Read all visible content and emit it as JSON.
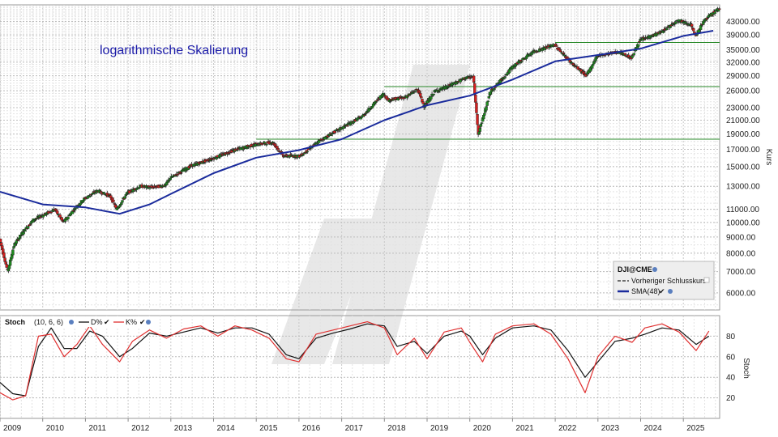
{
  "colors": {
    "up": "#1e8c1e",
    "down": "#d42020",
    "sma": "#1a2b9c",
    "stoch_d": "#111111",
    "stoch_k": "#e03030",
    "support": "#2a8a2a",
    "annotation": "#1a1aa8"
  },
  "chart_data": [
    {
      "type": "candlestick",
      "annotation": "logarithmische Skalierung",
      "ylabel": "Kurs",
      "yscale": "log",
      "ylim": [
        5300,
        48500
      ],
      "xlim": [
        2009.0,
        2025.85
      ],
      "x_ticks": [
        "2009",
        "2010",
        "2011",
        "2012",
        "2013",
        "2014",
        "2015",
        "2016",
        "2017",
        "2018",
        "2019",
        "2020",
        "2021",
        "2022",
        "2023",
        "2024",
        "2025"
      ],
      "y_ticks": [
        "6000.00",
        "7000.00",
        "8000.00",
        "9000.00",
        "10000.00",
        "11000.00",
        "13000.00",
        "15000.00",
        "17000.00",
        "19000.00",
        "21000.00",
        "23000.00",
        "26000.00",
        "29000.00",
        "32000.00",
        "35000.00",
        "39000.00",
        "43000.00"
      ],
      "legend": {
        "position": "bottom-right",
        "title": "DJI@CME",
        "prev_close_label": "Vorheriger Schlusskurs",
        "sma_label": "SMA(48)"
      },
      "support_lines": [
        {
          "y": 18300,
          "x_start": 2015.0,
          "x_end": 2025.85
        },
        {
          "y": 26800,
          "x_start": 2018.0,
          "x_end": 2025.85
        },
        {
          "y": 36900,
          "x_start": 2022.0,
          "x_end": 2025.85
        }
      ],
      "price_path": [
        [
          2009.0,
          9000
        ],
        [
          2009.2,
          7000
        ],
        [
          2009.35,
          8500
        ],
        [
          2009.55,
          9300
        ],
        [
          2009.8,
          10200
        ],
        [
          2010.0,
          10500
        ],
        [
          2010.3,
          11000
        ],
        [
          2010.5,
          10000
        ],
        [
          2010.8,
          11200
        ],
        [
          2011.0,
          11900
        ],
        [
          2011.3,
          12600
        ],
        [
          2011.6,
          12100
        ],
        [
          2011.75,
          11000
        ],
        [
          2012.0,
          12400
        ],
        [
          2012.3,
          13000
        ],
        [
          2012.6,
          12900
        ],
        [
          2012.9,
          13100
        ],
        [
          2013.0,
          13800
        ],
        [
          2013.5,
          15100
        ],
        [
          2014.0,
          15900
        ],
        [
          2014.5,
          16900
        ],
        [
          2015.0,
          17600
        ],
        [
          2015.4,
          17900
        ],
        [
          2015.65,
          16200
        ],
        [
          2016.05,
          16200
        ],
        [
          2016.5,
          18100
        ],
        [
          2017.0,
          19800
        ],
        [
          2017.5,
          21600
        ],
        [
          2018.0,
          25500
        ],
        [
          2018.1,
          24300
        ],
        [
          2018.5,
          24800
        ],
        [
          2018.8,
          26300
        ],
        [
          2018.95,
          23200
        ],
        [
          2019.2,
          25900
        ],
        [
          2019.5,
          26800
        ],
        [
          2019.9,
          28500
        ],
        [
          2020.1,
          28800
        ],
        [
          2020.22,
          19000
        ],
        [
          2020.5,
          25800
        ],
        [
          2020.9,
          29600
        ],
        [
          2021.0,
          30800
        ],
        [
          2021.5,
          34500
        ],
        [
          2022.0,
          36300
        ],
        [
          2022.4,
          31800
        ],
        [
          2022.75,
          29000
        ],
        [
          2023.0,
          33500
        ],
        [
          2023.5,
          34500
        ],
        [
          2023.8,
          33000
        ],
        [
          2024.0,
          37500
        ],
        [
          2024.5,
          39800
        ],
        [
          2024.9,
          43500
        ],
        [
          2025.2,
          42000
        ],
        [
          2025.3,
          38500
        ],
        [
          2025.5,
          43200
        ],
        [
          2025.8,
          46800
        ]
      ],
      "sma_path": [
        [
          2009.0,
          12500
        ],
        [
          2010.0,
          11400
        ],
        [
          2011.0,
          11150
        ],
        [
          2011.8,
          10650
        ],
        [
          2012.5,
          11400
        ],
        [
          2013.0,
          12300
        ],
        [
          2014.0,
          14300
        ],
        [
          2015.0,
          16000
        ],
        [
          2016.0,
          16900
        ],
        [
          2017.0,
          18300
        ],
        [
          2018.0,
          21000
        ],
        [
          2019.0,
          23400
        ],
        [
          2020.0,
          25100
        ],
        [
          2021.0,
          28200
        ],
        [
          2022.0,
          32200
        ],
        [
          2023.0,
          33700
        ],
        [
          2024.0,
          35300
        ],
        [
          2025.0,
          38700
        ],
        [
          2025.7,
          40200
        ]
      ]
    },
    {
      "type": "line",
      "title": "Stoch",
      "params": "(10, 6, 6)",
      "ylabel": "Stoch",
      "ylim": [
        0,
        100
      ],
      "y_ticks": [
        "20",
        "40",
        "60",
        "80"
      ],
      "series": [
        {
          "name": "D%",
          "points": [
            [
              2009.0,
              35
            ],
            [
              2009.3,
              24
            ],
            [
              2009.6,
              22
            ],
            [
              2009.9,
              70
            ],
            [
              2010.2,
              88
            ],
            [
              2010.5,
              68
            ],
            [
              2010.8,
              68
            ],
            [
              2011.1,
              85
            ],
            [
              2011.4,
              80
            ],
            [
              2011.8,
              60
            ],
            [
              2012.1,
              68
            ],
            [
              2012.5,
              83
            ],
            [
              2012.9,
              80
            ],
            [
              2013.3,
              84
            ],
            [
              2013.7,
              88
            ],
            [
              2014.1,
              83
            ],
            [
              2014.5,
              88
            ],
            [
              2014.9,
              88
            ],
            [
              2015.3,
              82
            ],
            [
              2015.7,
              62
            ],
            [
              2016.0,
              58
            ],
            [
              2016.4,
              78
            ],
            [
              2016.8,
              83
            ],
            [
              2017.2,
              87
            ],
            [
              2017.6,
              92
            ],
            [
              2018.0,
              90
            ],
            [
              2018.3,
              70
            ],
            [
              2018.7,
              75
            ],
            [
              2019.0,
              63
            ],
            [
              2019.4,
              80
            ],
            [
              2019.8,
              85
            ],
            [
              2020.0,
              80
            ],
            [
              2020.3,
              62
            ],
            [
              2020.6,
              78
            ],
            [
              2021.0,
              88
            ],
            [
              2021.5,
              90
            ],
            [
              2021.9,
              86
            ],
            [
              2022.3,
              66
            ],
            [
              2022.7,
              40
            ],
            [
              2023.0,
              55
            ],
            [
              2023.4,
              75
            ],
            [
              2023.8,
              78
            ],
            [
              2024.1,
              82
            ],
            [
              2024.5,
              88
            ],
            [
              2024.9,
              86
            ],
            [
              2025.3,
              72
            ],
            [
              2025.6,
              80
            ]
          ]
        },
        {
          "name": "K%",
          "points": [
            [
              2009.0,
              25
            ],
            [
              2009.3,
              18
            ],
            [
              2009.6,
              22
            ],
            [
              2009.9,
              80
            ],
            [
              2010.2,
              82
            ],
            [
              2010.5,
              60
            ],
            [
              2010.8,
              72
            ],
            [
              2011.1,
              90
            ],
            [
              2011.4,
              72
            ],
            [
              2011.8,
              55
            ],
            [
              2012.1,
              75
            ],
            [
              2012.5,
              86
            ],
            [
              2012.9,
              78
            ],
            [
              2013.3,
              87
            ],
            [
              2013.7,
              90
            ],
            [
              2014.1,
              80
            ],
            [
              2014.5,
              90
            ],
            [
              2014.9,
              86
            ],
            [
              2015.3,
              78
            ],
            [
              2015.7,
              58
            ],
            [
              2016.0,
              55
            ],
            [
              2016.4,
              82
            ],
            [
              2016.8,
              86
            ],
            [
              2017.2,
              90
            ],
            [
              2017.6,
              94
            ],
            [
              2018.0,
              88
            ],
            [
              2018.3,
              62
            ],
            [
              2018.7,
              78
            ],
            [
              2019.0,
              58
            ],
            [
              2019.4,
              84
            ],
            [
              2019.8,
              88
            ],
            [
              2020.0,
              74
            ],
            [
              2020.3,
              55
            ],
            [
              2020.6,
              82
            ],
            [
              2021.0,
              90
            ],
            [
              2021.5,
              92
            ],
            [
              2021.9,
              82
            ],
            [
              2022.3,
              58
            ],
            [
              2022.7,
              25
            ],
            [
              2023.0,
              60
            ],
            [
              2023.4,
              80
            ],
            [
              2023.8,
              74
            ],
            [
              2024.1,
              88
            ],
            [
              2024.5,
              92
            ],
            [
              2024.9,
              84
            ],
            [
              2025.3,
              66
            ],
            [
              2025.6,
              85
            ]
          ]
        }
      ]
    }
  ]
}
